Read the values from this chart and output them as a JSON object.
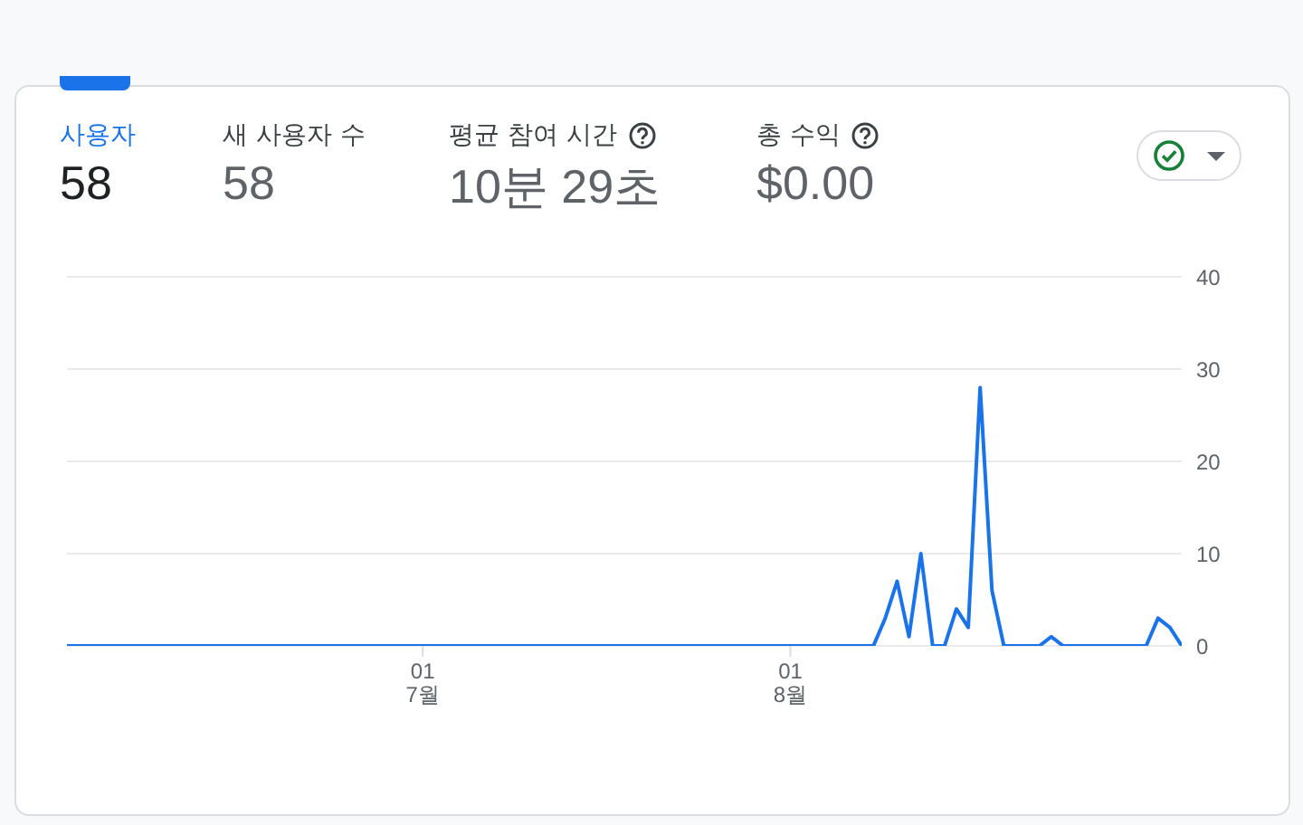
{
  "chart_data": {
    "type": "line",
    "annotations": [
      "사용자",
      "58",
      "새 사용자 수",
      "58",
      "평균 참여 시간",
      "10분 29초",
      "총 수익",
      "$0.00"
    ],
    "x": [
      "--06-01",
      "--08-08",
      "--08-09",
      "--08-10",
      "--08-11",
      "--08-12",
      "--08-13",
      "--08-14",
      "--08-15",
      "--08-16",
      "--08-17",
      "--08-18",
      "--08-19",
      "--08-22",
      "--08-23",
      "--08-24",
      "--08-31",
      "--09-01",
      "--09-02",
      "--09-03"
    ],
    "series": [
      {
        "color": "#1a73e8",
        "values": [
          0,
          0,
          3,
          7,
          1,
          10,
          0,
          0,
          4,
          2,
          28,
          6,
          0,
          0,
          1,
          0,
          0,
          3,
          2,
          0
        ]
      }
    ],
    "xlim": [
      "--06-01",
      "--09-03"
    ],
    "xticks": [
      {
        "value": "--07-01",
        "label": "01\n7월"
      },
      {
        "value": "--08-01",
        "label": "01\n8월"
      }
    ],
    "ylim": [
      0,
      40
    ],
    "yticks": [
      0,
      10,
      20,
      30,
      40
    ],
    "grid": "y"
  }
}
